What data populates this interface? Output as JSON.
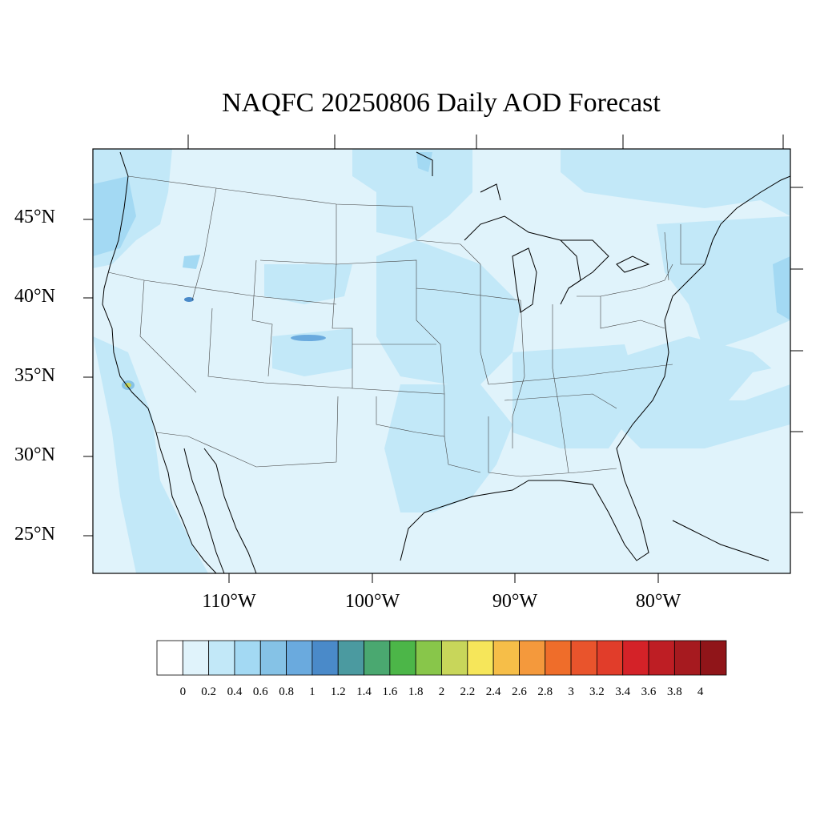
{
  "title": "NAQFC 20250806 Daily AOD Forecast",
  "lat_labels": [
    "45°N",
    "40°N",
    "35°N",
    "30°N",
    "25°N"
  ],
  "lon_labels": [
    "110°W",
    "100°W",
    "90°W",
    "80°W"
  ],
  "colorbar": {
    "labels": [
      "0",
      "0.2",
      "0.4",
      "0.6",
      "0.8",
      "1",
      "1.2",
      "1.4",
      "1.6",
      "1.8",
      "2",
      "2.2",
      "2.4",
      "2.6",
      "2.8",
      "3",
      "3.2",
      "3.4",
      "3.6",
      "3.8",
      "4"
    ],
    "colors": [
      "#ffffff",
      "#e0f3fb",
      "#c2e8f8",
      "#a3d9f3",
      "#85c2e6",
      "#6aaade",
      "#4a8ac9",
      "#4b9aa0",
      "#4aa870",
      "#4cb648",
      "#88c64a",
      "#c8d65a",
      "#f6e65a",
      "#f6be48",
      "#f4993c",
      "#ef6d2a",
      "#e9542c",
      "#e13d2a",
      "#d42228",
      "#be1e24",
      "#a61a1f",
      "#901519"
    ]
  },
  "map": {
    "extent_lon": [
      -119,
      -71
    ],
    "extent_lat": [
      23,
      50
    ],
    "background_color": "#e0f3fb",
    "enhanced_color": "#c2e8f8",
    "hotspot_colors": [
      "#6aaade",
      "#4a8ac9",
      "#c8d65a"
    ]
  }
}
